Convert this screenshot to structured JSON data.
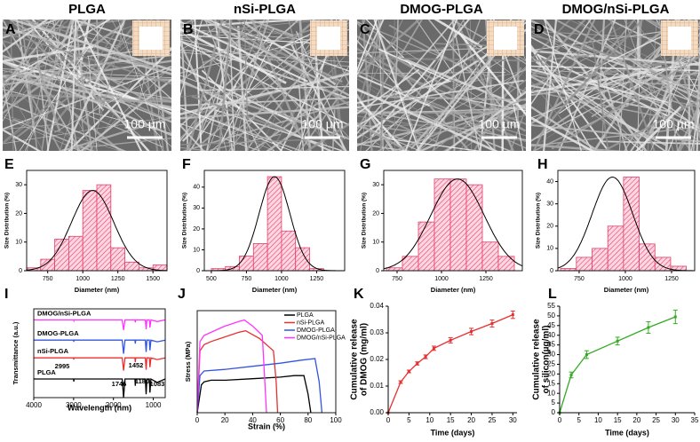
{
  "sem_panels": [
    {
      "label": "A",
      "title": "PLGA",
      "scale_bar": "100 µm"
    },
    {
      "label": "B",
      "title": "nSi-PLGA",
      "scale_bar": "100 µm"
    },
    {
      "label": "C",
      "title": "DMOG-PLGA",
      "scale_bar": "100 µm"
    },
    {
      "label": "D",
      "title": "DMOG/nSi-PLGA",
      "scale_bar": "100 µm"
    }
  ],
  "chart_data": [
    {
      "type": "histogram",
      "label": "E",
      "xlabel": "Diameter (nm)",
      "ylabel": "Size Distribution (%)",
      "color": "#e0406a",
      "box": true,
      "bins": [
        600,
        700,
        800,
        900,
        1000,
        1100,
        1200,
        1300,
        1400,
        1500,
        1600
      ],
      "values": [
        1,
        4,
        11,
        12,
        28,
        30,
        8,
        3,
        1,
        2
      ],
      "fit": {
        "mean": 1070,
        "sd": 150,
        "peak": 28
      },
      "xlim": [
        600,
        1600
      ],
      "ylim": [
        0,
        35
      ],
      "xticks": [
        750,
        1000,
        1250,
        1500
      ],
      "yticks": [
        0,
        10,
        20,
        30
      ]
    },
    {
      "type": "histogram",
      "label": "F",
      "xlabel": "Diameter (nm)",
      "ylabel": "Size Distribution (%)",
      "color": "#e0406a",
      "box": true,
      "bins": [
        500,
        600,
        700,
        800,
        900,
        1000,
        1100,
        1200,
        1300
      ],
      "values": [
        1,
        2,
        7,
        13,
        45,
        19,
        11,
        1
      ],
      "fit": {
        "mean": 950,
        "sd": 110,
        "peak": 45
      },
      "xlim": [
        450,
        1450
      ],
      "ylim": [
        0,
        48
      ],
      "xticks": [
        500,
        750,
        1000,
        1250
      ],
      "yticks": [
        0,
        10,
        20,
        30,
        40
      ]
    },
    {
      "type": "histogram",
      "label": "G",
      "xlabel": "Diameter (nm)",
      "ylabel": "Size Distribution (%)",
      "color": "#e0406a",
      "box": true,
      "bins": [
        690,
        780,
        870,
        960,
        1050,
        1140,
        1230,
        1320,
        1410
      ],
      "values": [
        1,
        5,
        17,
        32,
        32,
        30,
        10,
        5
      ],
      "fit": {
        "mean": 1090,
        "sd": 150,
        "peak": 32
      },
      "xlim": [
        675,
        1455
      ],
      "ylim": [
        0,
        35
      ],
      "xticks": [
        750,
        1000,
        1250
      ],
      "yticks": [
        0,
        10,
        20,
        30
      ]
    },
    {
      "type": "histogram",
      "label": "H",
      "xlabel": "Diameter (nm)",
      "ylabel": "Size Distribution (%)",
      "color": "#e0406a",
      "box": true,
      "bins": [
        650,
        735,
        820,
        905,
        990,
        1075,
        1160,
        1245,
        1330
      ],
      "values": [
        1,
        6,
        10,
        20,
        42,
        12,
        6,
        2
      ],
      "fit": {
        "mean": 930,
        "sd": 110,
        "peak": 42
      },
      "xlim": [
        635,
        1375
      ],
      "ylim": [
        0,
        45
      ],
      "xticks": [
        750,
        1000,
        1250
      ],
      "yticks": [
        0,
        10,
        20,
        30,
        40
      ]
    },
    {
      "type": "line",
      "label": "I",
      "xlabel": "Wavelength (nm)",
      "ylabel": "Transmittance (a.u.)",
      "box": true,
      "legend": "inline",
      "x": [
        4000,
        3500,
        3000,
        2995,
        2990,
        2500,
        2000,
        1780,
        1746,
        1710,
        1460,
        1452,
        1440,
        1200,
        1180,
        1160,
        1100,
        1083,
        1060,
        900,
        700
      ],
      "series": [
        {
          "name": "DMOG/nSi-PLGA",
          "color": "#ff33ff",
          "values": [
            92,
            92,
            92,
            91,
            92,
            92,
            92,
            92,
            80,
            92,
            92,
            89,
            92,
            92,
            81,
            92,
            92,
            83,
            92,
            90,
            92
          ]
        },
        {
          "name": "DMOG-PLGA",
          "color": "#3355dd",
          "values": [
            68,
            68,
            68,
            66,
            68,
            68,
            68,
            68,
            52,
            68,
            68,
            64,
            68,
            68,
            54,
            68,
            68,
            56,
            68,
            66,
            68
          ]
        },
        {
          "name": "nSi-PLGA",
          "color": "#e83030",
          "values": [
            47,
            47,
            47,
            45,
            47,
            47,
            47,
            47,
            32,
            47,
            47,
            42,
            47,
            47,
            33,
            47,
            47,
            36,
            47,
            45,
            47
          ]
        },
        {
          "name": "PLGA",
          "color": "#000000",
          "values": [
            22,
            22,
            22,
            19,
            22,
            22,
            22,
            22,
            0,
            22,
            22,
            14,
            22,
            22,
            4,
            22,
            22,
            6,
            22,
            18,
            22
          ]
        }
      ],
      "annotations": [
        "2995",
        "1452",
        "1746",
        "1180",
        "1083"
      ],
      "xlim": [
        4000,
        700
      ],
      "ylim": [
        0,
        105
      ],
      "xticks": [
        4000,
        3000,
        2000,
        1000
      ]
    },
    {
      "type": "line",
      "label": "J",
      "xlabel": "Strain (%)",
      "ylabel": "Stress (MPa)",
      "box": true,
      "legend": "upper right",
      "series": [
        {
          "name": "PLGA",
          "color": "#000000",
          "x": [
            0,
            3,
            5,
            10,
            20,
            40,
            60,
            70,
            77,
            80,
            82
          ],
          "values": [
            0,
            0.9,
            1.0,
            1.05,
            1.05,
            1.1,
            1.15,
            1.2,
            1.2,
            0.6,
            0
          ]
        },
        {
          "name": "nSi-PLGA",
          "color": "#e83030",
          "x": [
            0,
            2,
            5,
            10,
            20,
            30,
            35,
            45,
            55,
            57,
            58
          ],
          "values": [
            0,
            2.0,
            2.2,
            2.3,
            2.45,
            2.6,
            2.65,
            2.4,
            2.0,
            1.0,
            0
          ]
        },
        {
          "name": "DMOG-PLGA",
          "color": "#3355dd",
          "x": [
            0,
            2,
            5,
            20,
            40,
            60,
            75,
            85,
            88,
            90
          ],
          "values": [
            0,
            1.2,
            1.35,
            1.4,
            1.5,
            1.6,
            1.7,
            1.75,
            1.0,
            0
          ]
        },
        {
          "name": "DMOG/nSi-PLGA",
          "color": "#ff33ff",
          "x": [
            0,
            2,
            5,
            10,
            20,
            30,
            34,
            40,
            47,
            50
          ],
          "values": [
            0,
            2.3,
            2.5,
            2.6,
            2.8,
            2.95,
            3.0,
            2.8,
            2.5,
            0
          ]
        }
      ],
      "xlim": [
        0,
        100
      ],
      "ylim": [
        0,
        3.3
      ],
      "xticks": [
        0,
        20,
        40,
        60,
        80,
        100
      ]
    },
    {
      "type": "line",
      "label": "K",
      "xlabel": "Time (days)",
      "ylabel": [
        "Cumulative release",
        "of DMOG (mg/ml)"
      ],
      "box": false,
      "x": [
        0,
        3,
        5,
        7,
        9,
        11,
        15,
        20,
        25,
        30
      ],
      "series": [
        {
          "color": "#e83030",
          "values": [
            0,
            0.0115,
            0.0155,
            0.0185,
            0.021,
            0.0242,
            0.0272,
            0.0305,
            0.0335,
            0.0368
          ],
          "errors": [
            0,
            0.0005,
            0.0005,
            0.0006,
            0.0007,
            0.0008,
            0.001,
            0.0012,
            0.0013,
            0.0014
          ]
        }
      ],
      "xlim": [
        0,
        31
      ],
      "ylim": [
        0,
        0.04
      ],
      "xticks": [
        0,
        5,
        10,
        15,
        20,
        25,
        30
      ],
      "yticks": [
        {
          "value": 0,
          "label": "0.00"
        },
        0.01,
        0.02,
        0.03,
        0.04
      ]
    },
    {
      "type": "line",
      "label": "L",
      "xlabel": "Time (days)",
      "ylabel": [
        "Cumulative release",
        "of silicon(µg/ml)"
      ],
      "box": false,
      "x": [
        0,
        3,
        7,
        15,
        23,
        30
      ],
      "series": [
        {
          "color": "#33aa22",
          "values": [
            0,
            19.5,
            30,
            37,
            44,
            49.5
          ],
          "errors": [
            0,
            1.5,
            2,
            2,
            3,
            3.5
          ]
        }
      ],
      "xlim": [
        0,
        35
      ],
      "ylim": [
        0,
        55
      ],
      "xticks": [
        0,
        5,
        10,
        15,
        20,
        25,
        30,
        35
      ],
      "yticks": [
        0,
        5,
        10,
        15,
        20,
        25,
        30,
        35,
        40,
        45,
        50,
        55
      ]
    }
  ]
}
